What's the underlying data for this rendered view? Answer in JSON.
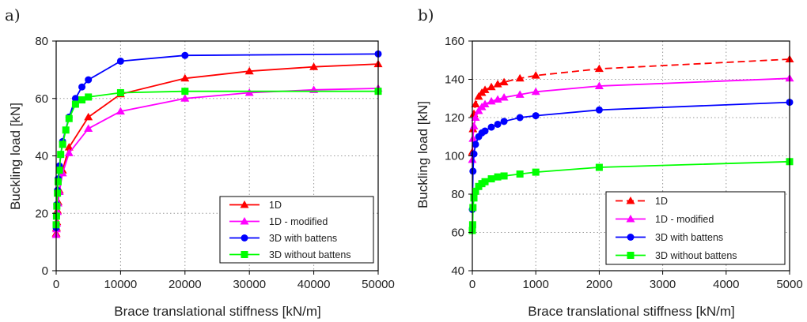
{
  "chart_data": [
    {
      "panel_label": "a)",
      "type": "line",
      "xlabel": "Brace translational stiffness [kN/m]",
      "ylabel": "Buckling  load [kN]",
      "xlim": [
        0,
        50000
      ],
      "ylim": [
        0,
        80
      ],
      "xticks": [
        "0",
        "10000",
        "20000",
        "30000",
        "40000",
        "50000"
      ],
      "yticks": [
        "0",
        "20",
        "40",
        "60",
        "80"
      ],
      "grid": "dotted",
      "legend_position": "bottom-right",
      "series": [
        {
          "name": "1D",
          "color": "#ff0000",
          "marker": "triangle",
          "dash": "solid",
          "x": [
            0,
            50,
            100,
            200,
            300,
            500,
            1000,
            2000,
            5000,
            10000,
            20000,
            30000,
            40000,
            50000
          ],
          "y": [
            13,
            15,
            17,
            21,
            24,
            28,
            35,
            43,
            53.5,
            61.5,
            67,
            69.5,
            71,
            72
          ]
        },
        {
          "name": "1D - modified",
          "color": "#ff00ff",
          "marker": "triangle",
          "dash": "solid",
          "x": [
            0,
            50,
            100,
            200,
            300,
            500,
            1000,
            2000,
            5000,
            10000,
            20000,
            30000,
            40000,
            50000
          ],
          "y": [
            12.5,
            14.5,
            16.5,
            20.5,
            23.5,
            27.5,
            34,
            41,
            49.5,
            55.5,
            60,
            62,
            63,
            63.5
          ]
        },
        {
          "name": "3D with battens",
          "color": "#0000ff",
          "marker": "circle",
          "dash": "solid",
          "x": [
            0,
            50,
            100,
            200,
            300,
            500,
            1000,
            2000,
            3000,
            4000,
            5000,
            10000,
            20000,
            50000
          ],
          "y": [
            15,
            19,
            23,
            28,
            32,
            36.5,
            45,
            53.5,
            60,
            64,
            66.5,
            73,
            75,
            75.5
          ]
        },
        {
          "name": "3D without battens",
          "color": "#00ff00",
          "marker": "square",
          "dash": "solid",
          "x": [
            0,
            50,
            100,
            200,
            300,
            500,
            700,
            1000,
            1500,
            2000,
            3000,
            4000,
            5000,
            10000,
            20000,
            50000
          ],
          "y": [
            16,
            19,
            22.5,
            27,
            31,
            35,
            40.5,
            44,
            49,
            53,
            58,
            59.5,
            60.5,
            62,
            62.5,
            62.5
          ]
        }
      ]
    },
    {
      "panel_label": "b)",
      "type": "line",
      "xlabel": "Brace translational stiffness [kN/m]",
      "ylabel": "Buckling  load [kN]",
      "xlim": [
        0,
        5000
      ],
      "ylim": [
        40,
        160
      ],
      "xticks": [
        "0",
        "1000",
        "2000",
        "3000",
        "4000",
        "5000"
      ],
      "yticks": [
        "40",
        "60",
        "80",
        "100",
        "120",
        "140",
        "160"
      ],
      "grid": "dotted",
      "legend_position": "bottom-right",
      "series": [
        {
          "name": "1D",
          "color": "#ff0000",
          "marker": "triangle",
          "dash": "dashed",
          "x": [
            0,
            10,
            25,
            50,
            100,
            150,
            200,
            300,
            400,
            500,
            750,
            1000,
            2000,
            5000
          ],
          "y": [
            102,
            114,
            122,
            127,
            131,
            133,
            134.5,
            136,
            137.5,
            138.5,
            140.5,
            142,
            145.5,
            150.5
          ]
        },
        {
          "name": "1D - modified",
          "color": "#ff00ff",
          "marker": "triangle",
          "dash": "solid",
          "x": [
            0,
            10,
            25,
            50,
            100,
            150,
            200,
            300,
            400,
            500,
            750,
            1000,
            2000,
            5000
          ],
          "y": [
            98,
            109,
            115.5,
            120,
            123.5,
            125.5,
            127,
            128.5,
            129.5,
            130.5,
            132,
            133.5,
            136.5,
            140.5
          ]
        },
        {
          "name": "3D with battens",
          "color": "#0000ff",
          "marker": "circle",
          "dash": "solid",
          "x": [
            0,
            10,
            25,
            50,
            100,
            150,
            200,
            300,
            400,
            500,
            750,
            1000,
            2000,
            5000
          ],
          "y": [
            72,
            92,
            101,
            106,
            110,
            112,
            113,
            115,
            116.5,
            118,
            120,
            121,
            124,
            128
          ]
        },
        {
          "name": "3D without battens",
          "color": "#00ff00",
          "marker": "square",
          "dash": "solid",
          "x": [
            0,
            5,
            10,
            25,
            50,
            100,
            150,
            200,
            300,
            400,
            500,
            750,
            1000,
            2000,
            5000
          ],
          "y": [
            61,
            64,
            73,
            78,
            81.5,
            84,
            85.5,
            86.5,
            88,
            89,
            89.5,
            90.5,
            91.5,
            94,
            97
          ]
        }
      ]
    }
  ]
}
